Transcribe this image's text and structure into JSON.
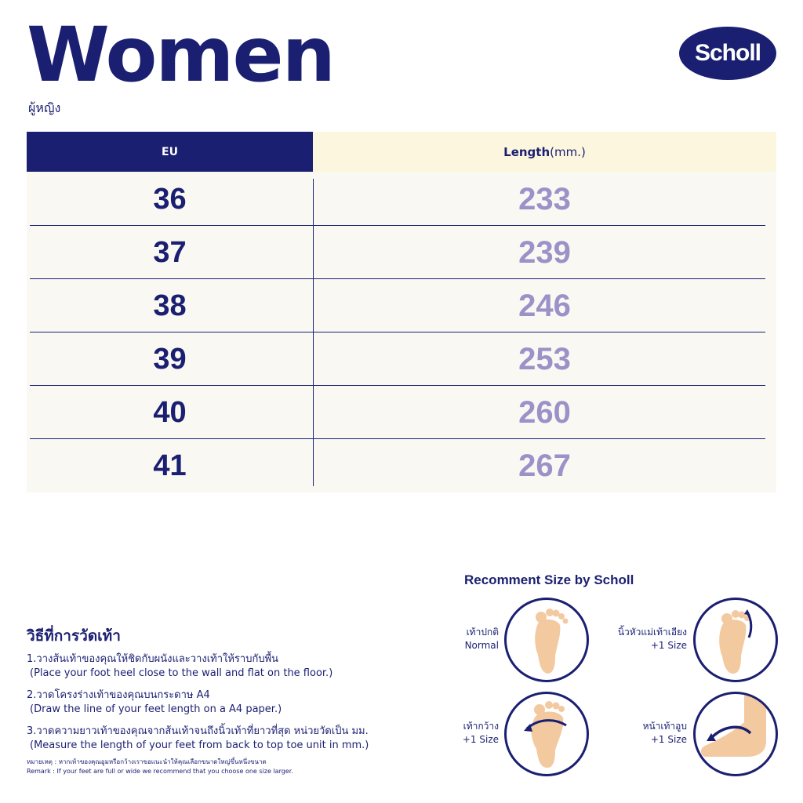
{
  "header": {
    "title": "Women",
    "subtitle": "ผู้หญิง",
    "logo_text": "Scholl"
  },
  "table": {
    "col_eu": "EU",
    "col_length_bold": "Length",
    "col_length_unit": "(mm.)",
    "rows": [
      {
        "eu": "36",
        "length": "233"
      },
      {
        "eu": "37",
        "length": "239"
      },
      {
        "eu": "38",
        "length": "246"
      },
      {
        "eu": "39",
        "length": "253"
      },
      {
        "eu": "40",
        "length": "260"
      },
      {
        "eu": "41",
        "length": "267"
      }
    ]
  },
  "howto": {
    "title": "วิธีที่การวัดเท้า",
    "steps": [
      {
        "th": "1.วางส้นเท้าของคุณให้ชิดกับผนังและวางเท้าให้ราบกับพื้น",
        "en": "(Place your foot heel close to the wall and flat on the floor.)"
      },
      {
        "th": "2.วาดโครงร่างเท้าของคุณบนกระดาษ A4",
        "en": "(Draw the line of your feet length on a A4 paper.)"
      },
      {
        "th": "3.วาดความยาวเท้าของคุณจากส้นเท้าจนถึงนิ้วเท้าที่ยาวที่สุด หน่วยวัดเป็น มม.",
        "en": "(Measure the length of your feet from back to top toe unit in mm.)"
      }
    ],
    "remark_th": "หมายเหตุ : หากเท้าของคุณอูมหรือกว้างเราขอแนะนำให้คุณเลือกขนาดใหญ่ขึ้นหนึ่งขนาด",
    "remark_en": "Remark : If your feet are full or wide we recommend that you choose one size larger."
  },
  "recommend": {
    "title": "Recomment Size by Scholl",
    "items": [
      {
        "th": "เท้าปกติ",
        "en": "Normal"
      },
      {
        "th": "นิ้วหัวแม่เท้าเอียง",
        "en": "+1 Size"
      },
      {
        "th": "เท้ากว้าง",
        "en": "+1 Size"
      },
      {
        "th": "หน้าเท้าอูบ",
        "en": "+1 Size"
      }
    ]
  },
  "colors": {
    "navy": "#1a1f71",
    "lavender": "#9a92c8",
    "cream": "#fdf6df",
    "skin": "#f3c9a0"
  }
}
